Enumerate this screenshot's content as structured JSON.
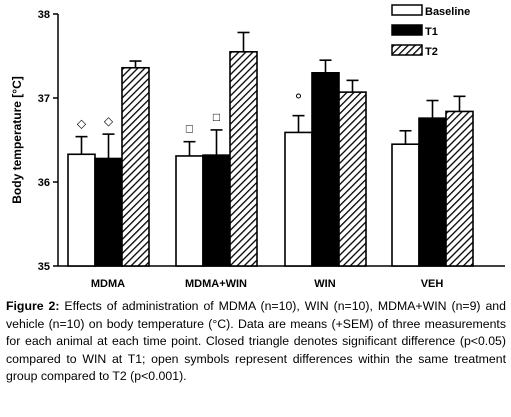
{
  "chart_data": {
    "type": "bar",
    "categories": [
      "MDMA",
      "MDMA+WIN",
      "WIN",
      "VEH"
    ],
    "series": [
      {
        "name": "Baseline",
        "values": [
          36.33,
          36.31,
          36.59,
          36.45
        ],
        "sem": [
          0.21,
          0.17,
          0.2,
          0.16
        ]
      },
      {
        "name": "T1",
        "values": [
          36.28,
          36.32,
          37.3,
          36.76
        ],
        "sem": [
          0.29,
          0.3,
          0.15,
          0.21
        ]
      },
      {
        "name": "T2",
        "values": [
          37.36,
          37.55,
          37.07,
          36.84
        ],
        "sem": [
          0.08,
          0.23,
          0.14,
          0.18
        ]
      }
    ],
    "ylabel": "Body temperature [°C]",
    "ylim": [
      35,
      38
    ],
    "yticks": [
      "35",
      "36",
      "37",
      "38"
    ],
    "legend_position": "top-right",
    "annotations": [
      {
        "category": "MDMA",
        "series": "Baseline",
        "symbol": "◇"
      },
      {
        "category": "MDMA",
        "series": "T1",
        "symbol": "◇"
      },
      {
        "category": "MDMA+WIN",
        "series": "Baseline",
        "symbol": "□"
      },
      {
        "category": "MDMA+WIN",
        "series": "T1",
        "symbol": "□"
      },
      {
        "category": "WIN",
        "series": "Baseline",
        "symbol": "°"
      }
    ]
  },
  "caption": {
    "label": "Figure 2:",
    "text": "Effects of administration of MDMA (n=10), WIN (n=10), MDMA+WIN (n=9) and vehicle (n=10) on body temperature (°C). Data are means (+SEM) of three measurements for each animal at each time point. Closed triangle denotes significant difference (p<0.05) compared to WIN at T1; open symbols represent differences within the same treatment group compared to T2 (p<0.001)."
  }
}
